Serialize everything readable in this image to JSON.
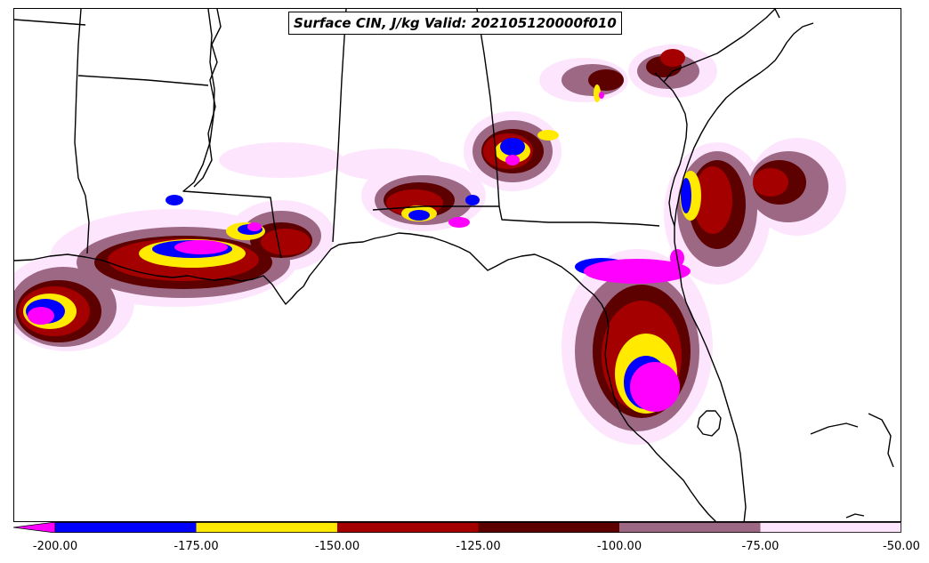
{
  "title": "Surface CIN, J/kg Valid: 202105120000f010",
  "colorbar": {
    "extend": "min",
    "bins": [
      {
        "from": -200.0,
        "to": -175.0,
        "color": "#0000ff"
      },
      {
        "from": -175.0,
        "to": -150.0,
        "color": "#ffea00"
      },
      {
        "from": -150.0,
        "to": -125.0,
        "color": "#a50000"
      },
      {
        "from": -125.0,
        "to": -100.0,
        "color": "#5c0000"
      },
      {
        "from": -100.0,
        "to": -75.0,
        "color": "#9c6884"
      },
      {
        "from": -75.0,
        "to": -50.0,
        "color": "#fde6fd"
      }
    ],
    "under_color": "#ff00ff",
    "ticks": [
      "-200.00",
      "-175.00",
      "-150.00",
      "-125.00",
      "-100.00",
      "-75.00",
      "-50.00"
    ]
  },
  "colors": {
    "land_outline": "#000000",
    "background": "#ffffff"
  }
}
